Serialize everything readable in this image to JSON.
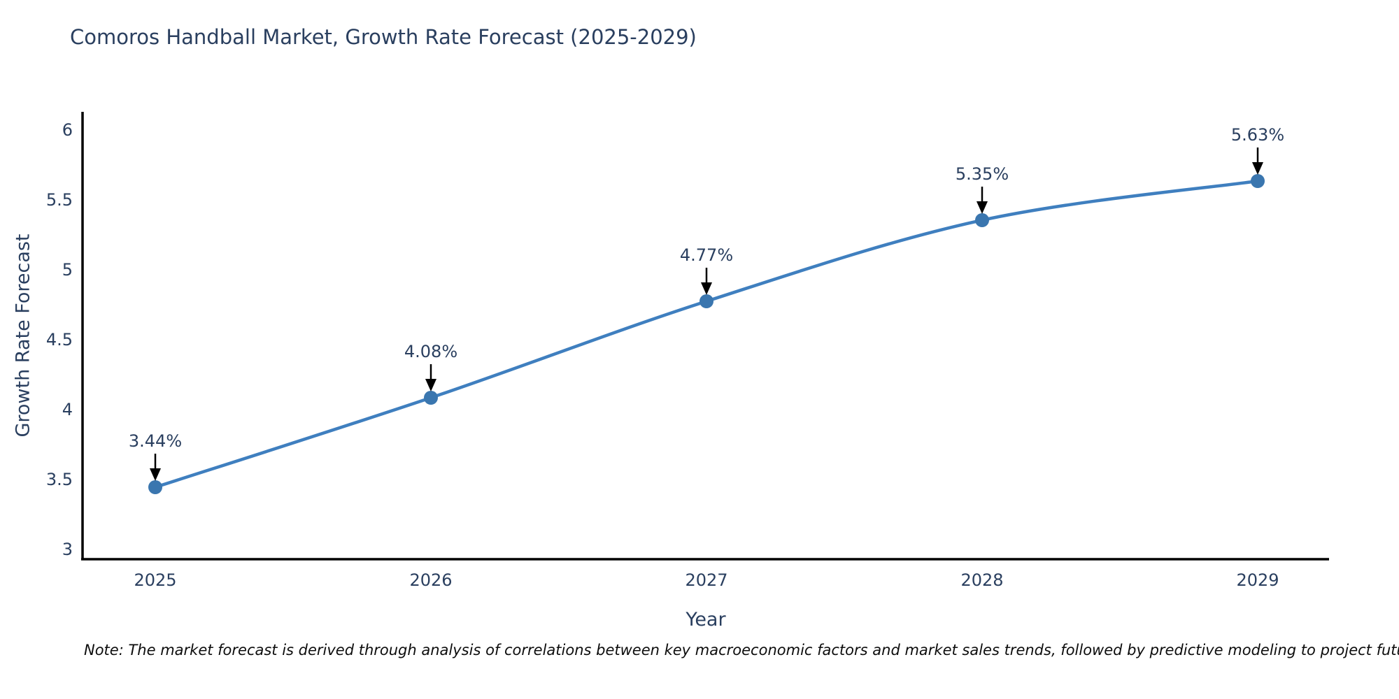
{
  "chart_data": {
    "type": "line",
    "title": "Comoros Handball Market, Growth Rate Forecast (2025-2029)",
    "xlabel": "Year",
    "ylabel": "Growth Rate Forecast",
    "categories": [
      "2025",
      "2026",
      "2027",
      "2028",
      "2029"
    ],
    "values": [
      3.44,
      4.08,
      4.77,
      5.35,
      5.63
    ],
    "point_labels": [
      "3.44%",
      "4.08%",
      "4.77%",
      "5.35%",
      "5.63%"
    ],
    "y_ticks": [
      3,
      3.5,
      4,
      4.5,
      5,
      5.5,
      6
    ],
    "ylim": [
      2.93,
      6.13
    ],
    "grid": false,
    "legend_position": "none",
    "line_shape": "spline",
    "colors": {
      "line": "#3f7fbf",
      "marker": "#3a76af",
      "axis": "#000000",
      "tick_label": "#2a3f5f",
      "annotation_text": "#2a3f5f",
      "annotation_arrow": "#000000",
      "title": "#2a3f5f",
      "background": "#ffffff"
    }
  },
  "note": {
    "text": "Note: The market forecast is derived through analysis of correlations between key macroeconomic factors and market sales trends, followed by predictive modeling to project future sales"
  }
}
